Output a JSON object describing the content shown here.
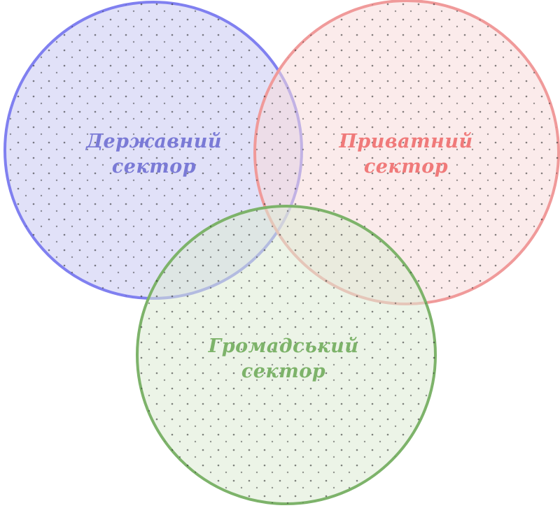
{
  "diagram": {
    "type": "venn",
    "sets": [
      {
        "id": "state",
        "line1": "Державний",
        "line2": "сектор",
        "stroke": "#8080f0",
        "fill": "#c8c8f2",
        "text_color": "#7a7ad6"
      },
      {
        "id": "private",
        "line1": "Приватний",
        "line2": "сектор",
        "stroke": "#f09a9a",
        "fill": "#f8dada",
        "text_color": "#f07a7a"
      },
      {
        "id": "nonprofit",
        "line1": "Громадський",
        "line2": "сектор",
        "stroke": "#7db36a",
        "fill": "#dcebd4",
        "text_color": "#7db36a"
      }
    ]
  }
}
